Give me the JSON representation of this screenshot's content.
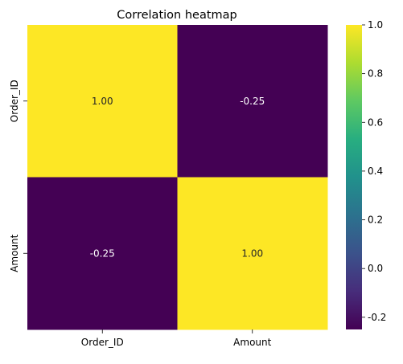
{
  "chart_data": {
    "type": "heatmap",
    "title": "Correlation heatmap",
    "xlabel": "",
    "ylabel": "",
    "x_categories": [
      "Order_ID",
      "Amount"
    ],
    "y_categories": [
      "Order_ID",
      "Amount"
    ],
    "values": [
      [
        1.0,
        -0.25
      ],
      [
        -0.25,
        1.0
      ]
    ],
    "cell_labels": [
      [
        "1.00",
        "-0.25"
      ],
      [
        "-0.25",
        "1.00"
      ]
    ],
    "colormap": "viridis",
    "vmin": -0.25,
    "vmax": 1.0,
    "colorbar_ticks": [
      "1.0",
      "0.8",
      "0.6",
      "0.4",
      "0.2",
      "0.0",
      "-0.2"
    ],
    "colorbar_tick_values": [
      1.0,
      0.8,
      0.6,
      0.4,
      0.2,
      0.0,
      -0.2
    ],
    "grid": false,
    "legend": "colorbar-right"
  }
}
